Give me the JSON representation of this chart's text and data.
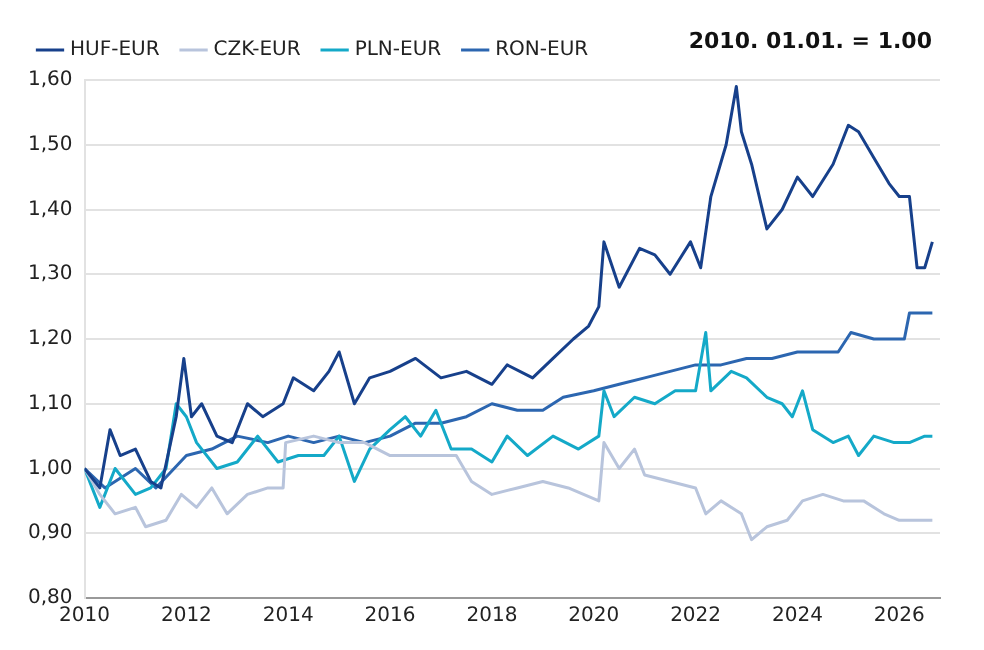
{
  "chart_data": {
    "type": "line",
    "annotations": [
      "2010. 01.01. = 1.00"
    ],
    "xlim": [
      2010,
      2026.8
    ],
    "xticks": [
      2010,
      2012,
      2014,
      2016,
      2018,
      2020,
      2022,
      2024,
      2026
    ],
    "ylim": [
      0.8,
      1.6
    ],
    "yticks": [
      {
        "value": 0.8,
        "label": "0,80"
      },
      {
        "value": 0.9,
        "label": "0,90"
      },
      {
        "value": 1.0,
        "label": "1,00"
      },
      {
        "value": 1.1,
        "label": "1,10"
      },
      {
        "value": 1.2,
        "label": "1,20"
      },
      {
        "value": 1.3,
        "label": "1,30"
      },
      {
        "value": 1.4,
        "label": "1,40"
      },
      {
        "value": 1.5,
        "label": "1,50"
      },
      {
        "value": 1.6,
        "label": "1,60"
      }
    ],
    "grid": "y",
    "legend": "top left",
    "marker": "none",
    "line_style": "solid",
    "series": [
      {
        "name": "HUF-EUR",
        "color": "#17408b",
        "x": [
          2010,
          2010.3,
          2010.5,
          2010.7,
          2011,
          2011.3,
          2011.5,
          2011.8,
          2011.95,
          2012.1,
          2012.3,
          2012.6,
          2012.9,
          2013.2,
          2013.5,
          2013.9,
          2014.1,
          2014.5,
          2014.8,
          2015,
          2015.3,
          2015.6,
          2016,
          2016.5,
          2017,
          2017.5,
          2018,
          2018.3,
          2018.8,
          2019.2,
          2019.6,
          2019.9,
          2020.1,
          2020.2,
          2020.5,
          2020.9,
          2021.2,
          2021.5,
          2021.9,
          2022.1,
          2022.3,
          2022.6,
          2022.8,
          2022.9,
          2023.1,
          2023.4,
          2023.7,
          2024,
          2024.3,
          2024.7,
          2025,
          2025.2,
          2025.5,
          2025.8,
          2026,
          2026.2,
          2026.35,
          2026.5,
          2026.65
        ],
        "values": [
          1.0,
          0.97,
          1.06,
          1.02,
          1.03,
          0.98,
          0.97,
          1.08,
          1.17,
          1.08,
          1.1,
          1.05,
          1.04,
          1.1,
          1.08,
          1.1,
          1.14,
          1.12,
          1.15,
          1.18,
          1.1,
          1.14,
          1.15,
          1.17,
          1.14,
          1.15,
          1.13,
          1.16,
          1.14,
          1.17,
          1.2,
          1.22,
          1.25,
          1.35,
          1.28,
          1.34,
          1.33,
          1.3,
          1.35,
          1.31,
          1.42,
          1.5,
          1.59,
          1.52,
          1.47,
          1.37,
          1.4,
          1.45,
          1.42,
          1.47,
          1.53,
          1.52,
          1.48,
          1.44,
          1.42,
          1.42,
          1.31,
          1.31,
          1.35
        ]
      },
      {
        "name": "CZK-EUR",
        "color": "#b8c4dc",
        "x": [
          2010,
          2010.3,
          2010.6,
          2011,
          2011.2,
          2011.6,
          2011.9,
          2012.2,
          2012.5,
          2012.8,
          2013.2,
          2013.6,
          2013.9,
          2013.95,
          2014.5,
          2015,
          2015.5,
          2016,
          2017,
          2017.3,
          2017.6,
          2018,
          2018.5,
          2019,
          2019.5,
          2020.1,
          2020.2,
          2020.5,
          2020.8,
          2021,
          2021.5,
          2022,
          2022.2,
          2022.5,
          2022.9,
          2023.1,
          2023.4,
          2023.8,
          2024.1,
          2024.5,
          2024.9,
          2025.3,
          2025.7,
          2026,
          2026.3,
          2026.65
        ],
        "values": [
          1.0,
          0.96,
          0.93,
          0.94,
          0.91,
          0.92,
          0.96,
          0.94,
          0.97,
          0.93,
          0.96,
          0.97,
          0.97,
          1.04,
          1.05,
          1.04,
          1.04,
          1.02,
          1.02,
          1.02,
          0.98,
          0.96,
          0.97,
          0.98,
          0.97,
          0.95,
          1.04,
          1.0,
          1.03,
          0.99,
          0.98,
          0.97,
          0.93,
          0.95,
          0.93,
          0.89,
          0.91,
          0.92,
          0.95,
          0.96,
          0.95,
          0.95,
          0.93,
          0.92,
          0.92,
          0.92
        ]
      },
      {
        "name": "PLN-EUR",
        "color": "#14a9c8",
        "x": [
          2010,
          2010.3,
          2010.6,
          2011,
          2011.3,
          2011.6,
          2011.8,
          2012,
          2012.2,
          2012.6,
          2013,
          2013.4,
          2013.8,
          2014.2,
          2014.7,
          2015,
          2015.3,
          2015.6,
          2016,
          2016.3,
          2016.6,
          2016.9,
          2017.2,
          2017.6,
          2018,
          2018.3,
          2018.7,
          2019.2,
          2019.7,
          2020.1,
          2020.2,
          2020.4,
          2020.8,
          2021.2,
          2021.6,
          2022,
          2022.2,
          2022.3,
          2022.7,
          2023,
          2023.4,
          2023.7,
          2023.9,
          2024.1,
          2024.3,
          2024.7,
          2025,
          2025.2,
          2025.5,
          2025.9,
          2026.2,
          2026.5,
          2026.65
        ],
        "values": [
          1.0,
          0.94,
          1.0,
          0.96,
          0.97,
          1.0,
          1.1,
          1.08,
          1.04,
          1.0,
          1.01,
          1.05,
          1.01,
          1.02,
          1.02,
          1.05,
          0.98,
          1.03,
          1.06,
          1.08,
          1.05,
          1.09,
          1.03,
          1.03,
          1.01,
          1.05,
          1.02,
          1.05,
          1.03,
          1.05,
          1.12,
          1.08,
          1.11,
          1.1,
          1.12,
          1.12,
          1.21,
          1.12,
          1.15,
          1.14,
          1.11,
          1.1,
          1.08,
          1.12,
          1.06,
          1.04,
          1.05,
          1.02,
          1.05,
          1.04,
          1.04,
          1.05,
          1.05
        ]
      },
      {
        "name": "RON-EUR",
        "color": "#2c66b0",
        "x": [
          2010,
          2010.4,
          2011,
          2011.4,
          2012,
          2012.5,
          2013,
          2013.6,
          2014,
          2014.5,
          2015,
          2015.5,
          2016,
          2016.5,
          2017,
          2017.5,
          2018,
          2018.5,
          2019,
          2019.4,
          2020,
          2020.5,
          2021,
          2021.5,
          2022,
          2022.5,
          2023,
          2023.5,
          2024,
          2024.8,
          2025.05,
          2025.5,
          2026.1,
          2026.2,
          2026.65
        ],
        "values": [
          1.0,
          0.97,
          1.0,
          0.97,
          1.02,
          1.03,
          1.05,
          1.04,
          1.05,
          1.04,
          1.05,
          1.04,
          1.05,
          1.07,
          1.07,
          1.08,
          1.1,
          1.09,
          1.09,
          1.11,
          1.12,
          1.13,
          1.14,
          1.15,
          1.16,
          1.16,
          1.17,
          1.17,
          1.18,
          1.18,
          1.21,
          1.2,
          1.2,
          1.24,
          1.24
        ]
      }
    ]
  }
}
